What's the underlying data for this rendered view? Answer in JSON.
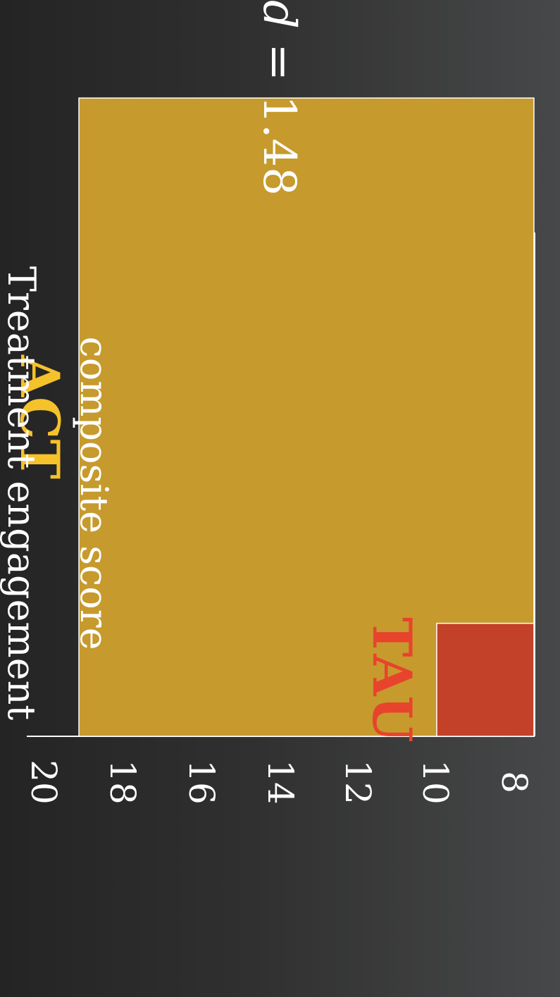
{
  "chart_data": {
    "type": "bar",
    "orientation": "rotated-90",
    "ylabel": "Treatment engagement composite score",
    "ylabel_lines": [
      "Treatment engagement",
      "composite score"
    ],
    "ylim": [
      8,
      20
    ],
    "y_ticks": [
      "8",
      "10",
      "12",
      "14",
      "16",
      "18",
      "20"
    ],
    "categories": [
      "ACT",
      "TAU"
    ],
    "values": [
      19.3,
      10.0
    ],
    "bar_colors": [
      "#c69a2d",
      "#c24128"
    ],
    "label_colors": [
      "#f5c22b",
      "#e8432d"
    ],
    "annotation": {
      "variable": "d",
      "text": " = 1.48"
    },
    "grid": false,
    "legend": "none"
  }
}
